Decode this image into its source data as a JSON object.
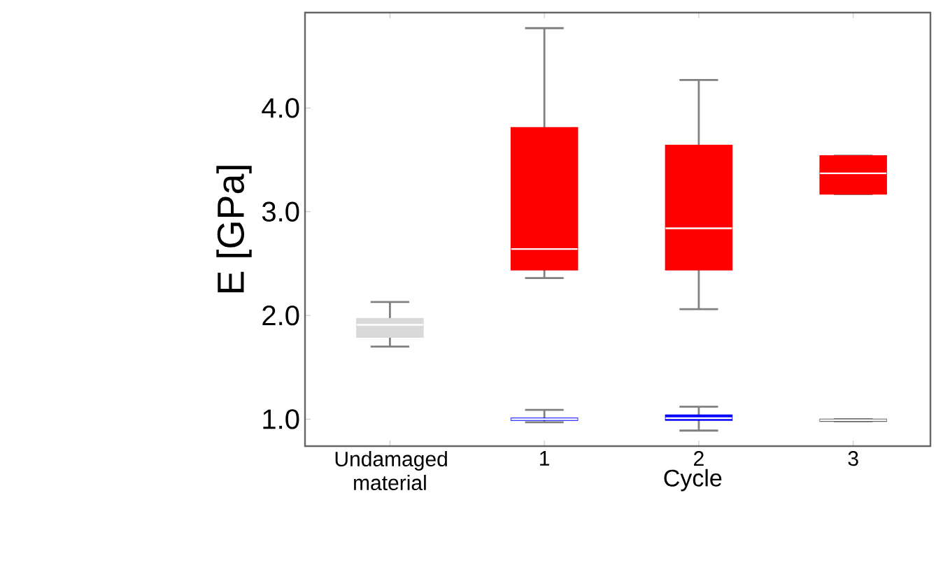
{
  "chart_data": {
    "type": "box",
    "ylabel": "E [GPa]",
    "xlabel": "Cycle",
    "categories": [
      "Undamaged material",
      "1",
      "2",
      "3"
    ],
    "ylim": [
      0.74,
      4.92
    ],
    "yticks": [
      {
        "value": 1,
        "label": "1.0"
      },
      {
        "value": 2,
        "label": "2.0"
      },
      {
        "value": 3,
        "label": "3.0"
      },
      {
        "value": 4,
        "label": "4.0"
      }
    ],
    "series": [
      {
        "colors": [
          "#d9d9d9",
          "#ff0000",
          "#ff0000",
          "#ff0000"
        ],
        "boxes": [
          {
            "low": 1.7,
            "q1": 1.79,
            "median": 1.91,
            "q3": 1.97,
            "high": 2.13
          },
          {
            "low": 2.36,
            "q1": 2.44,
            "median": 2.64,
            "q3": 3.81,
            "high": 4.77
          },
          {
            "low": 2.06,
            "q1": 2.44,
            "median": 2.84,
            "q3": 3.64,
            "high": 4.27
          },
          {
            "low": 3.17,
            "q1": 3.17,
            "median": 3.37,
            "q3": 3.54,
            "high": 3.54
          }
        ]
      },
      {
        "colors": [
          null,
          "#0000ff",
          "#0000ff",
          "#666666"
        ],
        "boxes": [
          null,
          {
            "low": 0.97,
            "q1": 0.99,
            "median": 1.0,
            "q3": 1.01,
            "high": 1.09
          },
          {
            "low": 0.89,
            "q1": 0.99,
            "median": 1.01,
            "q3": 1.04,
            "high": 1.12
          },
          {
            "low": 0.98,
            "q1": 0.98,
            "median": 0.99,
            "q3": 1.0,
            "high": 1.0
          }
        ]
      }
    ]
  }
}
